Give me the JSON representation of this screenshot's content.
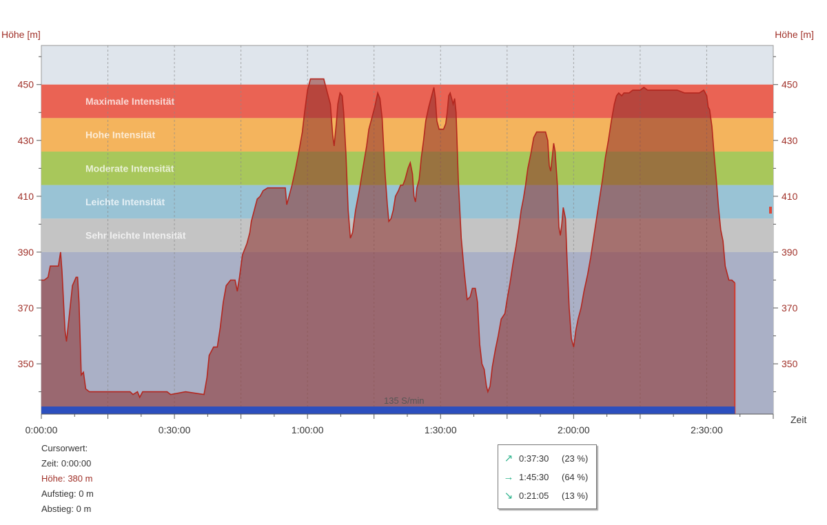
{
  "chart_data": {
    "type": "area",
    "ylabel_left": "Höhe [m]",
    "ylabel_right": "Höhe [m]",
    "xlabel": "Zeit",
    "ylim": [
      332,
      464
    ],
    "xlim_seconds": [
      0,
      9900
    ],
    "y_ticks": [
      350,
      370,
      390,
      410,
      430,
      450
    ],
    "x_ticks": [
      {
        "label": "0:00:00",
        "t": 0
      },
      {
        "label": "0:30:00",
        "t": 1800
      },
      {
        "label": "1:00:00",
        "t": 3600
      },
      {
        "label": "1:30:00",
        "t": 5400
      },
      {
        "label": "2:00:00",
        "t": 7200
      },
      {
        "label": "2:30:00",
        "t": 9000
      }
    ],
    "grid": "vertical dashed",
    "zones": [
      {
        "label": "Maximale Intensität",
        "from": 438,
        "to": 450,
        "color": "#ea6354"
      },
      {
        "label": "Hohe Intensität",
        "from": 426,
        "to": 438,
        "color": "#f4b45d"
      },
      {
        "label": "Moderate Intensität",
        "from": 414,
        "to": 426,
        "color": "#a8c75b"
      },
      {
        "label": "Leichte Intensität",
        "from": 402,
        "to": 414,
        "color": "#99c3d5"
      },
      {
        "label": "Sehr leichte Intensität",
        "from": 390,
        "to": 402,
        "color": "#c4c4c4"
      }
    ],
    "cadence_label": "135 S/min",
    "series": [
      {
        "values": [
          [
            0,
            380
          ],
          [
            40,
            380
          ],
          [
            90,
            381
          ],
          [
            120,
            385
          ],
          [
            230,
            385
          ],
          [
            260,
            390
          ],
          [
            280,
            383
          ],
          [
            320,
            362
          ],
          [
            340,
            358
          ],
          [
            380,
            368
          ],
          [
            420,
            378
          ],
          [
            470,
            381
          ],
          [
            490,
            381
          ],
          [
            510,
            372
          ],
          [
            540,
            346
          ],
          [
            570,
            347
          ],
          [
            600,
            341
          ],
          [
            650,
            340
          ],
          [
            900,
            340
          ],
          [
            1020,
            340
          ],
          [
            1200,
            340
          ],
          [
            1240,
            339
          ],
          [
            1300,
            340
          ],
          [
            1330,
            338
          ],
          [
            1370,
            340
          ],
          [
            1400,
            340
          ],
          [
            1700,
            340
          ],
          [
            1750,
            339
          ],
          [
            1950,
            340
          ],
          [
            2200,
            339
          ],
          [
            2240,
            345
          ],
          [
            2270,
            353
          ],
          [
            2330,
            356
          ],
          [
            2380,
            356
          ],
          [
            2420,
            363
          ],
          [
            2460,
            372
          ],
          [
            2500,
            378
          ],
          [
            2560,
            380
          ],
          [
            2620,
            380
          ],
          [
            2650,
            376
          ],
          [
            2680,
            381
          ],
          [
            2720,
            389
          ],
          [
            2780,
            393
          ],
          [
            2820,
            397
          ],
          [
            2840,
            401
          ],
          [
            2890,
            406
          ],
          [
            2920,
            409
          ],
          [
            2960,
            410
          ],
          [
            3000,
            412
          ],
          [
            3060,
            413
          ],
          [
            3300,
            413
          ],
          [
            3320,
            407
          ],
          [
            3350,
            410
          ],
          [
            3390,
            414
          ],
          [
            3440,
            420
          ],
          [
            3490,
            427
          ],
          [
            3530,
            433
          ],
          [
            3560,
            440
          ],
          [
            3600,
            448
          ],
          [
            3640,
            452
          ],
          [
            3820,
            452
          ],
          [
            3870,
            447
          ],
          [
            3910,
            443
          ],
          [
            3940,
            432
          ],
          [
            3960,
            428
          ],
          [
            3990,
            436
          ],
          [
            4010,
            443
          ],
          [
            4040,
            447
          ],
          [
            4070,
            446
          ],
          [
            4090,
            440
          ],
          [
            4120,
            425
          ],
          [
            4150,
            405
          ],
          [
            4180,
            395
          ],
          [
            4210,
            397
          ],
          [
            4250,
            405
          ],
          [
            4300,
            412
          ],
          [
            4350,
            420
          ],
          [
            4400,
            428
          ],
          [
            4430,
            434
          ],
          [
            4470,
            438
          ],
          [
            4510,
            442
          ],
          [
            4550,
            447
          ],
          [
            4580,
            445
          ],
          [
            4610,
            438
          ],
          [
            4650,
            418
          ],
          [
            4680,
            407
          ],
          [
            4700,
            401
          ],
          [
            4730,
            402
          ],
          [
            4760,
            405
          ],
          [
            4790,
            410
          ],
          [
            4830,
            412
          ],
          [
            4860,
            414
          ],
          [
            4890,
            414
          ],
          [
            4920,
            416
          ],
          [
            4960,
            420
          ],
          [
            4990,
            422
          ],
          [
            5020,
            418
          ],
          [
            5040,
            410
          ],
          [
            5060,
            408
          ],
          [
            5080,
            413
          ],
          [
            5110,
            416
          ],
          [
            5140,
            424
          ],
          [
            5170,
            430
          ],
          [
            5200,
            437
          ],
          [
            5240,
            442
          ],
          [
            5280,
            446
          ],
          [
            5310,
            449
          ],
          [
            5330,
            445
          ],
          [
            5350,
            437
          ],
          [
            5380,
            434
          ],
          [
            5440,
            434
          ],
          [
            5470,
            436
          ],
          [
            5490,
            440
          ],
          [
            5510,
            446
          ],
          [
            5530,
            447
          ],
          [
            5550,
            445
          ],
          [
            5570,
            443
          ],
          [
            5590,
            445
          ],
          [
            5610,
            440
          ],
          [
            5640,
            416
          ],
          [
            5680,
            395
          ],
          [
            5720,
            383
          ],
          [
            5760,
            373
          ],
          [
            5800,
            374
          ],
          [
            5830,
            377
          ],
          [
            5870,
            377
          ],
          [
            5900,
            372
          ],
          [
            5930,
            357
          ],
          [
            5960,
            350
          ],
          [
            5990,
            348
          ],
          [
            6020,
            342
          ],
          [
            6040,
            340
          ],
          [
            6070,
            342
          ],
          [
            6100,
            349
          ],
          [
            6140,
            355
          ],
          [
            6180,
            360
          ],
          [
            6220,
            366
          ],
          [
            6270,
            368
          ],
          [
            6300,
            373
          ],
          [
            6340,
            379
          ],
          [
            6380,
            386
          ],
          [
            6420,
            392
          ],
          [
            6460,
            399
          ],
          [
            6490,
            405
          ],
          [
            6520,
            409
          ],
          [
            6550,
            414
          ],
          [
            6580,
            420
          ],
          [
            6620,
            425
          ],
          [
            6660,
            431
          ],
          [
            6700,
            433
          ],
          [
            6820,
            433
          ],
          [
            6850,
            430
          ],
          [
            6870,
            421
          ],
          [
            6890,
            419
          ],
          [
            6910,
            424
          ],
          [
            6930,
            429
          ],
          [
            6950,
            426
          ],
          [
            6980,
            414
          ],
          [
            7000,
            399
          ],
          [
            7020,
            396
          ],
          [
            7040,
            400
          ],
          [
            7060,
            406
          ],
          [
            7090,
            402
          ],
          [
            7110,
            388
          ],
          [
            7140,
            370
          ],
          [
            7170,
            359
          ],
          [
            7200,
            356
          ],
          [
            7230,
            362
          ],
          [
            7260,
            366
          ],
          [
            7300,
            370
          ],
          [
            7340,
            376
          ],
          [
            7390,
            382
          ],
          [
            7430,
            388
          ],
          [
            7470,
            395
          ],
          [
            7510,
            402
          ],
          [
            7550,
            409
          ],
          [
            7590,
            416
          ],
          [
            7630,
            424
          ],
          [
            7670,
            430
          ],
          [
            7710,
            437
          ],
          [
            7750,
            443
          ],
          [
            7780,
            446
          ],
          [
            7810,
            447
          ],
          [
            7850,
            446
          ],
          [
            7880,
            447
          ],
          [
            7950,
            447
          ],
          [
            8000,
            448
          ],
          [
            8100,
            448
          ],
          [
            8150,
            449
          ],
          [
            8200,
            448
          ],
          [
            8300,
            448
          ],
          [
            8400,
            448
          ],
          [
            8600,
            448
          ],
          [
            8700,
            447
          ],
          [
            8800,
            447
          ],
          [
            8900,
            447
          ],
          [
            8960,
            448
          ],
          [
            9000,
            446
          ],
          [
            9020,
            442
          ],
          [
            9040,
            441
          ],
          [
            9070,
            435
          ],
          [
            9100,
            425
          ],
          [
            9130,
            416
          ],
          [
            9160,
            406
          ],
          [
            9190,
            398
          ],
          [
            9220,
            394
          ],
          [
            9250,
            385
          ],
          [
            9300,
            380
          ],
          [
            9340,
            380
          ],
          [
            9380,
            379
          ]
        ]
      }
    ]
  },
  "cursor_panel": {
    "title": "Cursorwert:",
    "time_label": "Zeit:",
    "time_value": "0:00:00",
    "height_label": "Höhe:",
    "height_value": "380 m",
    "ascent_label": "Aufstieg:",
    "ascent_value": "0 m",
    "descent_label": "Abstieg:",
    "descent_value": "0 m"
  },
  "legend": [
    {
      "icon": "arrow-up-right-icon",
      "glyph": "↗",
      "time": "0:37:30",
      "percent": "(23 %)"
    },
    {
      "icon": "arrow-right-icon",
      "glyph": "→",
      "time": "1:45:30",
      "percent": "(64 %)"
    },
    {
      "icon": "arrow-down-right-icon",
      "glyph": "↘",
      "time": "0:21:05",
      "percent": "(13 %)"
    }
  ]
}
